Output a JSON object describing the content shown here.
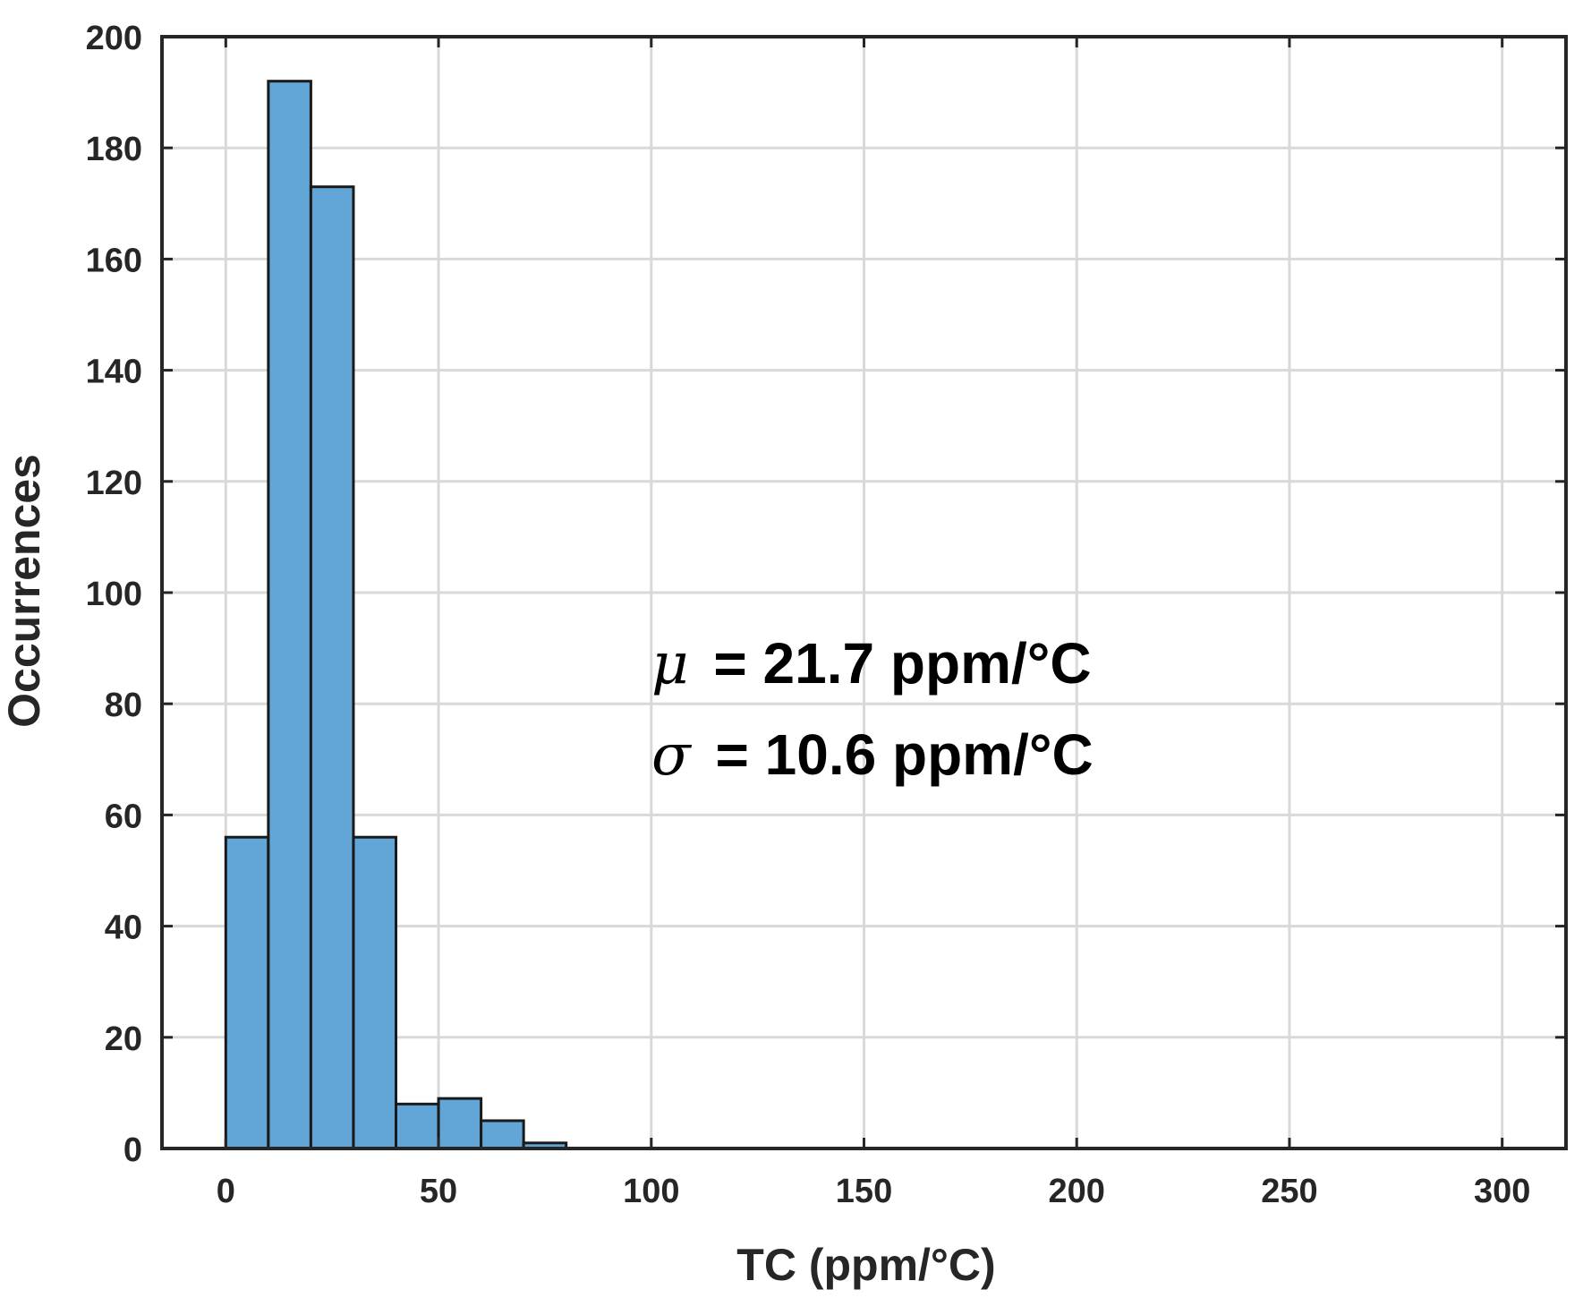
{
  "chart_data": {
    "type": "bar",
    "subtype": "histogram",
    "xlabel": "TC (ppm/°C)",
    "ylabel": "Occurrences",
    "xlim": [
      -15,
      315
    ],
    "ylim": [
      0,
      200
    ],
    "xticks": [
      0,
      50,
      100,
      150,
      200,
      250,
      300
    ],
    "yticks": [
      0,
      20,
      40,
      60,
      80,
      100,
      120,
      140,
      160,
      180,
      200
    ],
    "grid": true,
    "bin_width": 10,
    "bins": [
      {
        "start": 0,
        "end": 10,
        "count": 56
      },
      {
        "start": 10,
        "end": 20,
        "count": 192
      },
      {
        "start": 20,
        "end": 30,
        "count": 173
      },
      {
        "start": 30,
        "end": 40,
        "count": 56
      },
      {
        "start": 40,
        "end": 50,
        "count": 8
      },
      {
        "start": 50,
        "end": 60,
        "count": 9
      },
      {
        "start": 60,
        "end": 70,
        "count": 5
      },
      {
        "start": 70,
        "end": 80,
        "count": 1
      }
    ],
    "colors": {
      "bar_fill": "#61a6d7",
      "bar_edge": "#1a1a1a",
      "grid": "#d9d9d9",
      "axis": "#262626"
    },
    "annotations": [
      {
        "symbol": "μ",
        "text": " = 21.7 ppm/°C"
      },
      {
        "symbol": "σ",
        "text": " = 10.6 ppm/°C"
      }
    ]
  }
}
